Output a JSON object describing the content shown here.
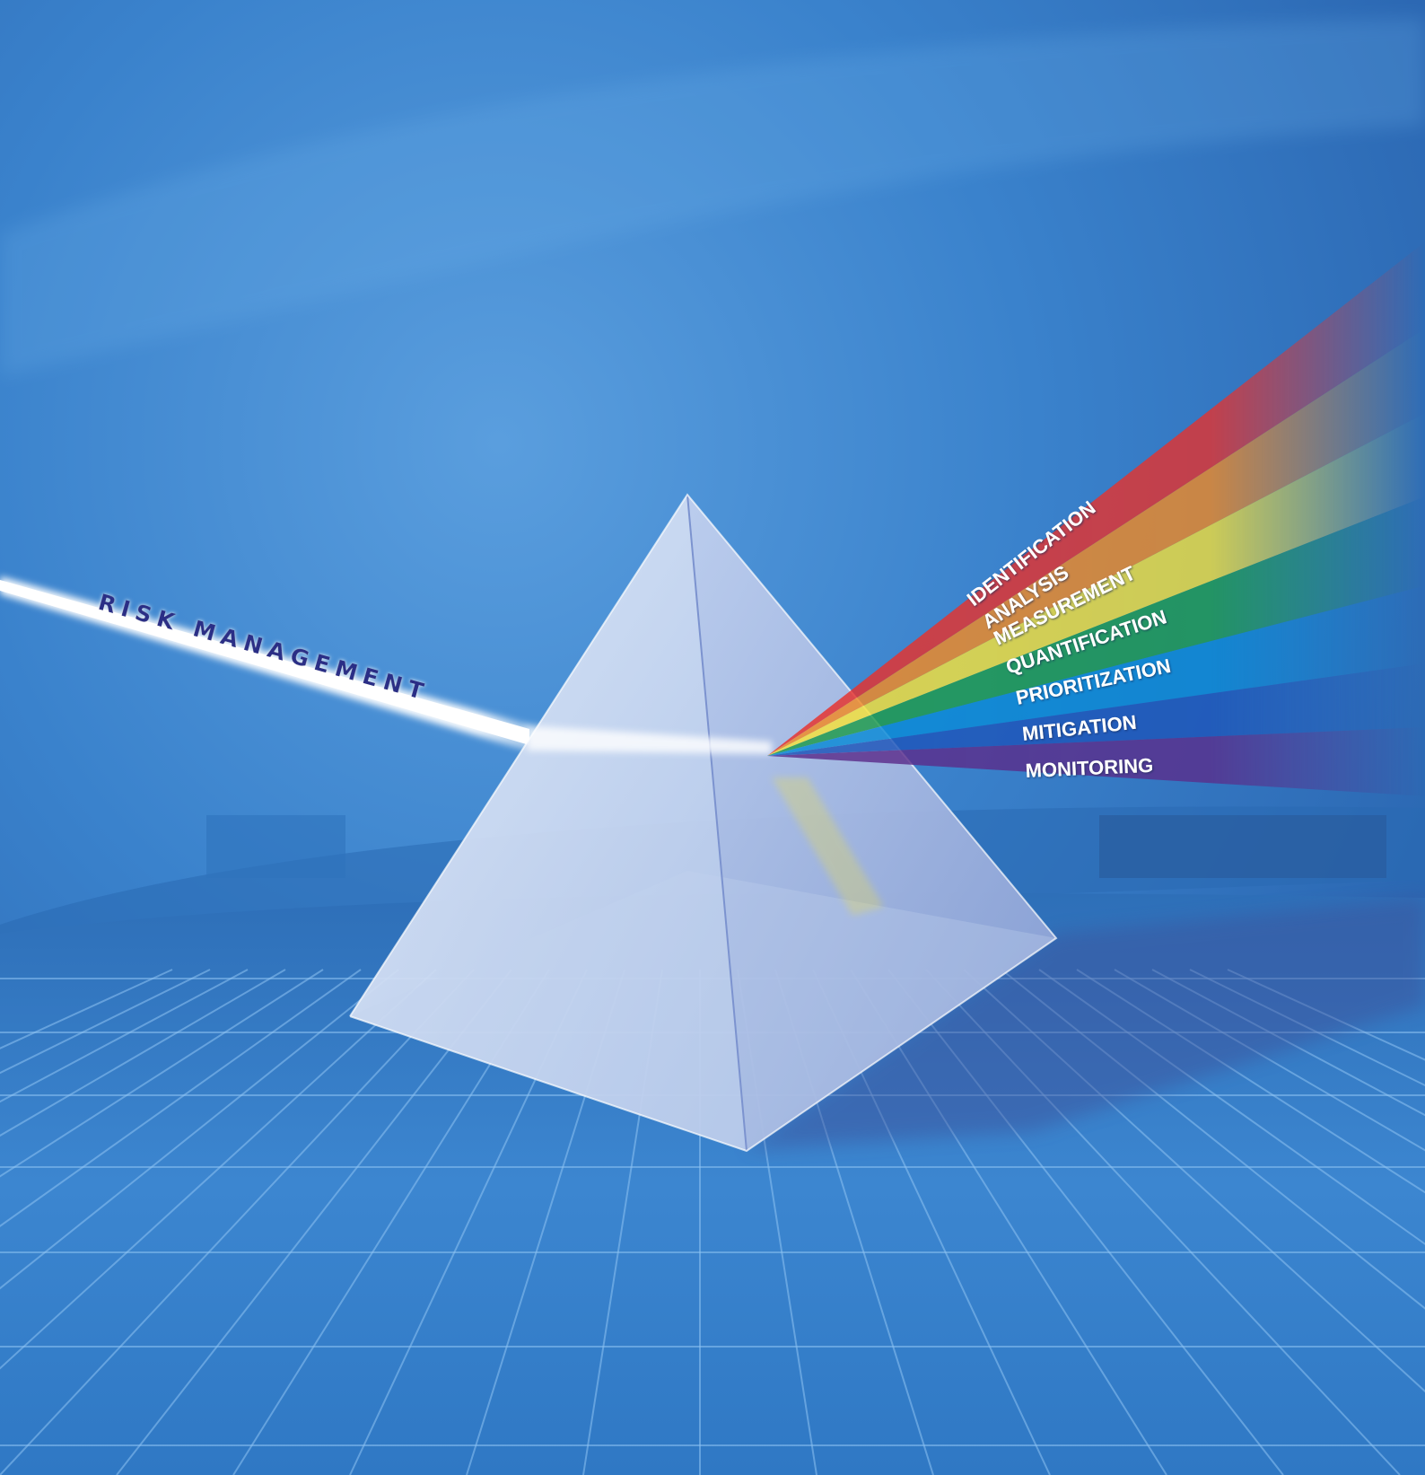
{
  "input_beam": {
    "label": "RISK MANAGEMENT"
  },
  "spectrum": {
    "labels": [
      "IDENTIFICATION",
      "ANALYSIS",
      "MEASUREMENT",
      "QUANTIFICATION",
      "PRIORITIZATION",
      "MITIGATION",
      "MONITORING"
    ],
    "band_colors": [
      "#e8312b",
      "#f28a24",
      "#f6e23a",
      "#1e9b4a",
      "#0a8ad6",
      "#1d55b8",
      "#5b2d8a"
    ]
  },
  "colors": {
    "background": "#2f78c4",
    "input_label": "#2c2f86",
    "spectrum_label": "#ffffff",
    "grid_line": "#8ec3f2"
  }
}
